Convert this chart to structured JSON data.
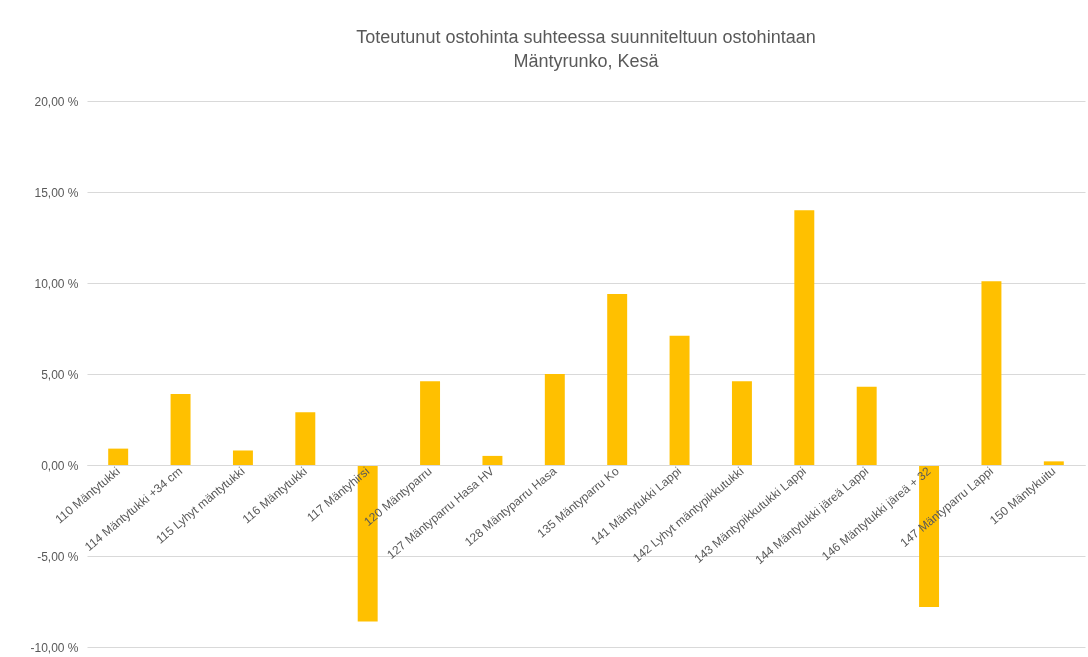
{
  "chart_data": {
    "type": "bar",
    "title": "Toteutunut ostohinta suhteessa suunniteltuun ostohintaan",
    "subtitle": "Mäntyrunko, Kesä",
    "categories": [
      "110 Mäntytukki",
      "114 Mäntytukki +34 cm",
      "115 Lyhyt mäntytukki",
      "116 Mäntytukki",
      "117 Mäntyhirsi",
      "120 Mäntyparru",
      "127 Mäntyparru Hasa HV",
      "128 Mäntyparru Hasa",
      "135 Mäntyparru Ko",
      "141 Mäntytukki Lappi",
      "142 Lyhyt mäntypikkutukki",
      "143 Mäntypikkutukki Lappi",
      "144 Mäntytukki järeä Lappi",
      "146 Mäntytukki järeä + 32",
      "147 Mäntyparru Lappi",
      "150 Mäntykuitu"
    ],
    "values": [
      0.9,
      3.9,
      0.8,
      2.9,
      -8.6,
      4.6,
      0.5,
      5.0,
      9.4,
      7.1,
      4.6,
      14.0,
      4.3,
      -7.8,
      10.1,
      0.2
    ],
    "color": "#ffc000",
    "ylim": [
      -10,
      20
    ],
    "yticks": [
      {
        "value": -10,
        "label": "-10,00 %"
      },
      {
        "value": -5,
        "label": "-5,00 %"
      },
      {
        "value": 0,
        "label": "0,00 %"
      },
      {
        "value": 5,
        "label": "5,00 %"
      },
      {
        "value": 10,
        "label": "10,00 %"
      },
      {
        "value": 15,
        "label": "15,00 %"
      },
      {
        "value": 20,
        "label": "20,00 %"
      }
    ],
    "grid": "y"
  }
}
